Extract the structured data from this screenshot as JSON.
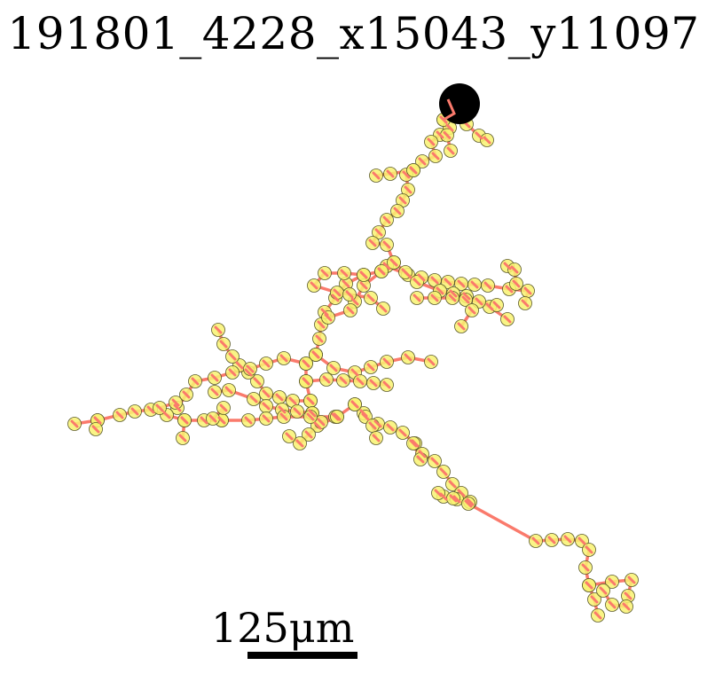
{
  "title": "191801_4228_x15043_y11097",
  "scale_bar": {
    "label": "125μm"
  },
  "colors": {
    "background": "#ffffff",
    "branch": "#fa7a6c",
    "node_fill": "#f8f271",
    "node_stroke": "#5c5a2a",
    "soma": "#000000",
    "text": "#000000"
  }
}
